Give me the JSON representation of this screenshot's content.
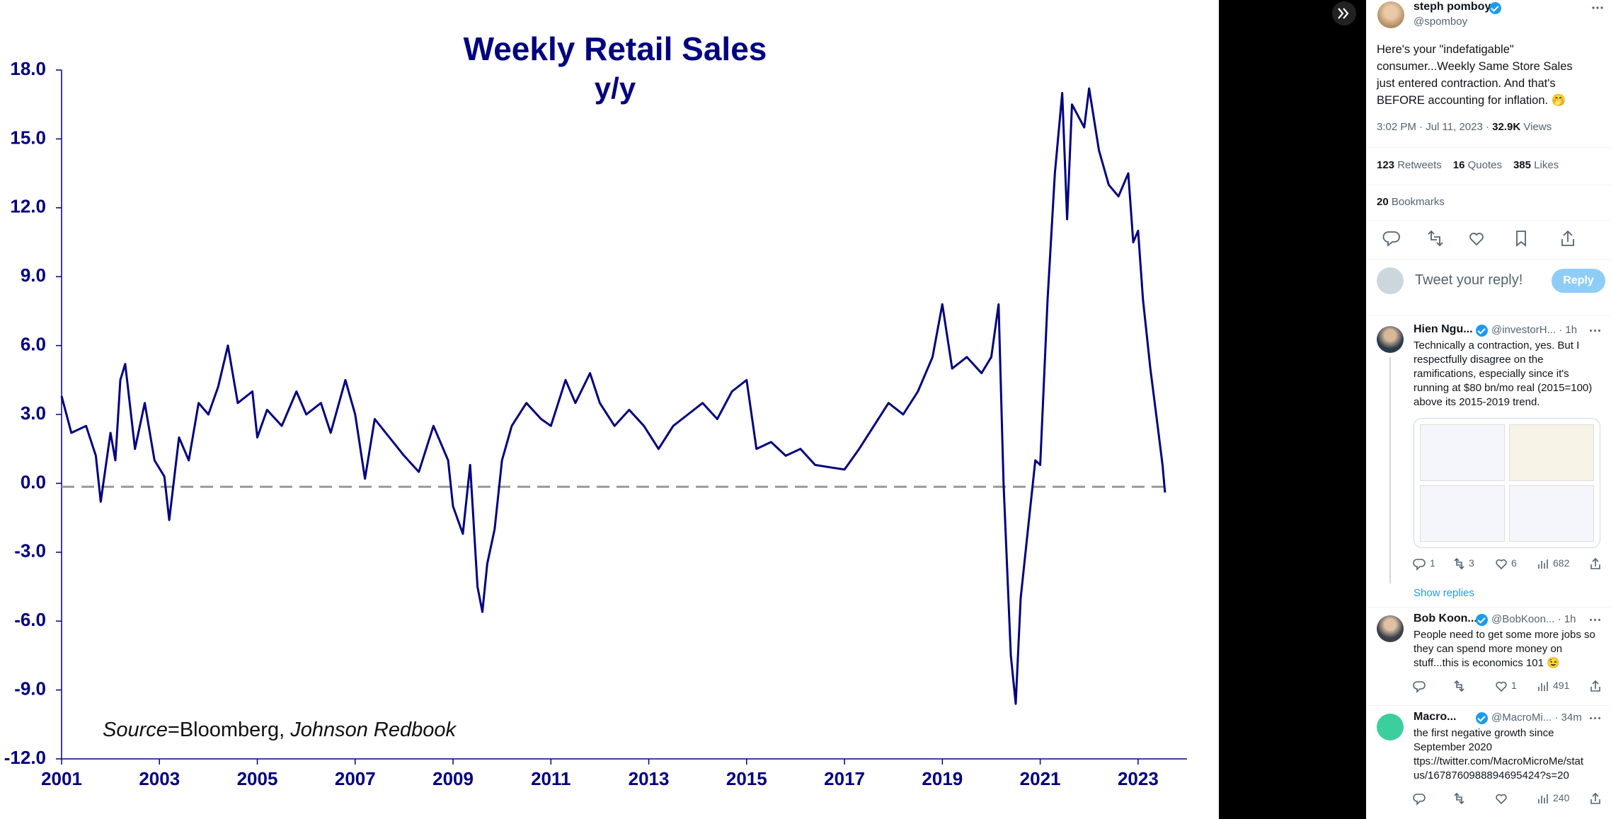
{
  "chart_data": {
    "type": "line",
    "title": "Weekly Retail Sales",
    "subtitle": "y/y",
    "annotation": [
      "Source",
      "=Bloomberg, ",
      "Johnson Redbook"
    ],
    "color": "#000080",
    "x": [
      2001.0,
      2001.2,
      2001.5,
      2001.7,
      2001.8,
      2002.0,
      2002.1,
      2002.2,
      2002.3,
      2002.5,
      2002.7,
      2002.9,
      2003.1,
      2003.2,
      2003.4,
      2003.6,
      2003.8,
      2004.0,
      2004.2,
      2004.4,
      2004.6,
      2004.9,
      2005.0,
      2005.2,
      2005.5,
      2005.8,
      2006.0,
      2006.3,
      2006.5,
      2006.8,
      2007.0,
      2007.2,
      2007.4,
      2007.7,
      2008.0,
      2008.3,
      2008.6,
      2008.9,
      2009.0,
      2009.2,
      2009.35,
      2009.5,
      2009.6,
      2009.7,
      2009.85,
      2010.0,
      2010.2,
      2010.5,
      2010.8,
      2011.0,
      2011.3,
      2011.5,
      2011.8,
      2012.0,
      2012.3,
      2012.6,
      2012.9,
      2013.2,
      2013.5,
      2013.8,
      2014.1,
      2014.4,
      2014.7,
      2015.0,
      2015.2,
      2015.5,
      2015.8,
      2016.1,
      2016.4,
      2016.7,
      2017.0,
      2017.3,
      2017.6,
      2017.9,
      2018.2,
      2018.5,
      2018.8,
      2019.0,
      2019.2,
      2019.5,
      2019.8,
      2020.0,
      2020.15,
      2020.25,
      2020.4,
      2020.5,
      2020.6,
      2020.75,
      2020.9,
      2021.0,
      2021.15,
      2021.3,
      2021.45,
      2021.55,
      2021.65,
      2021.9,
      2022.0,
      2022.2,
      2022.4,
      2022.6,
      2022.8,
      2022.9,
      2023.0,
      2023.1,
      2023.25,
      2023.4,
      2023.5,
      2023.55
    ],
    "values": [
      3.8,
      2.2,
      2.5,
      1.2,
      -0.8,
      2.2,
      1.0,
      4.5,
      5.2,
      1.5,
      3.5,
      1.0,
      0.3,
      -1.6,
      2.0,
      1.0,
      3.5,
      3.0,
      4.2,
      6.0,
      3.5,
      4.0,
      2.0,
      3.2,
      2.5,
      4.0,
      3.0,
      3.5,
      2.2,
      4.5,
      3.0,
      0.2,
      2.8,
      2.0,
      1.2,
      0.5,
      2.5,
      1.0,
      -1.0,
      -2.2,
      0.8,
      -4.5,
      -5.6,
      -3.5,
      -2.0,
      1.0,
      2.5,
      3.5,
      2.8,
      2.5,
      4.5,
      3.5,
      4.8,
      3.5,
      2.5,
      3.2,
      2.5,
      1.5,
      2.5,
      3.0,
      3.5,
      2.8,
      4.0,
      4.5,
      1.5,
      1.8,
      1.2,
      1.5,
      0.8,
      0.7,
      0.6,
      1.5,
      2.5,
      3.5,
      3.0,
      4.0,
      5.5,
      7.8,
      5.0,
      5.5,
      4.8,
      5.5,
      7.8,
      0.0,
      -7.5,
      -9.6,
      -5.0,
      -2.0,
      1.0,
      0.8,
      8.0,
      13.5,
      17.0,
      11.5,
      16.5,
      15.5,
      17.2,
      14.5,
      13.0,
      12.5,
      13.5,
      10.5,
      11.0,
      8.0,
      5.0,
      2.5,
      0.8,
      -0.4
    ],
    "xlim": [
      2001,
      2024
    ],
    "xticks": [
      2001,
      2003,
      2005,
      2007,
      2009,
      2011,
      2013,
      2015,
      2017,
      2019,
      2021,
      2023
    ],
    "ylim": [
      -12,
      18
    ],
    "yticks": [
      {
        "value": 18,
        "label": "18.0"
      },
      {
        "value": 15,
        "label": "15.0"
      },
      {
        "value": 12,
        "label": "12.0"
      },
      {
        "value": 9,
        "label": "9.0"
      },
      {
        "value": 6,
        "label": "6.0"
      },
      {
        "value": 3,
        "label": "3.0"
      },
      {
        "value": 0,
        "label": "0.0"
      },
      {
        "value": -3,
        "label": "-3.0"
      },
      {
        "value": -6,
        "label": "-6.0"
      },
      {
        "value": -9,
        "label": "-9.0"
      },
      {
        "value": -12,
        "label": "-12.0"
      }
    ],
    "reference_line": {
      "value": -0.15,
      "color": "#999999",
      "dashed": true
    }
  },
  "tweet": {
    "author": "steph pomboy",
    "handle": "@spomboy",
    "text": [
      "Here's your \"indefatigable\"",
      "consumer...Weekly Same Store Sales",
      "just entered contraction.  And that's",
      "BEFORE accounting for inflation. 🤭"
    ],
    "time": "3:02 PM · Jul 11, 2023 ·",
    "views": "32.9K",
    "views_label": "Views",
    "stats": [
      {
        "count": 123,
        "label": "Retweets"
      },
      {
        "count": 16,
        "label": "Quotes"
      },
      {
        "count": 385,
        "label": "Likes"
      }
    ],
    "bookmarks": {
      "count": 20,
      "label": "Bookmarks"
    },
    "reply_prompt": "Tweet your reply!",
    "reply_button": "Reply",
    "show_replies": "Show replies",
    "replies": [
      {
        "name": "Hien Ngu...",
        "handle": "@investorH... · 1h",
        "text": [
          "Technically a contraction, yes.  But I",
          "respectfully disagree on the",
          "ramifications, especially since it's",
          "running at $80 bn/mo real (2015=100)",
          "above its 2015-2019 trend."
        ],
        "stats": {
          "replies": 1,
          "retweets": 3,
          "likes": 6,
          "views": 682
        }
      },
      {
        "name": "Bob Koon...",
        "handle": "@BobKoon... · 1h",
        "text": [
          "People need to get some more jobs so",
          "they can spend more money on",
          "stuff...this is economics 101 😉"
        ],
        "stats": {
          "likes": 1,
          "views": 491
        }
      },
      {
        "name": "Macro...",
        "handle": "@MacroMi... · 34m",
        "text": [
          "the first negative growth since",
          "September 2020",
          "ttps://twitter.com/MacroMicroMe/stat",
          "us/1678760988894695424?s=20"
        ],
        "stats": {
          "views": 240
        }
      }
    ]
  }
}
